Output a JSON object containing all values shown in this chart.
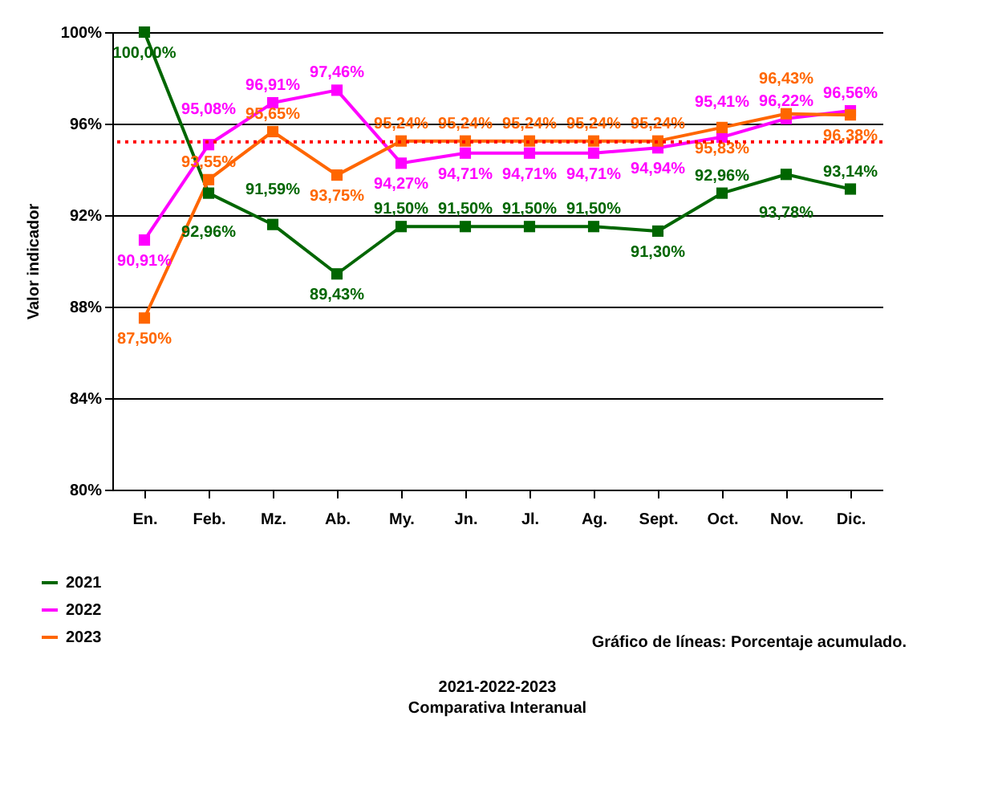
{
  "chart_data": {
    "type": "line",
    "title": "2021-2022-2023",
    "subtitle": "Comparativa Interanual",
    "ylabel": "Valor indicador",
    "annotations": [
      "Gráfico de líneas:  Porcentaje acumulado."
    ],
    "categories": [
      "En.",
      "Feb.",
      "Mz.",
      "Ab.",
      "My.",
      "Jn.",
      "Jl.",
      "Ag.",
      "Sept.",
      "Oct.",
      "Nov.",
      "Dic."
    ],
    "series": [
      {
        "name": "2021",
        "color": "#006600",
        "values": [
          100,
          92.96,
          91.59,
          89.43,
          91.5,
          91.5,
          91.5,
          91.5,
          91.3,
          92.96,
          93.78,
          93.14
        ],
        "value_labels": [
          "100,00%",
          "92,96%",
          "91,59%",
          "89,43%",
          "91,50%",
          "91,50%",
          "91,50%",
          "91,50%",
          "91,30%",
          "92,96%",
          "93,78%",
          "93,14%"
        ]
      },
      {
        "name": "2022",
        "color": "#ff00ff",
        "values": [
          90.91,
          95.08,
          96.91,
          97.46,
          94.27,
          94.71,
          94.71,
          94.71,
          94.94,
          95.41,
          96.22,
          96.56
        ],
        "value_labels": [
          "90,91%",
          "95,08%",
          "96,91%",
          "97,46%",
          "94,27%",
          "94,71%",
          "94,71%",
          "94,71%",
          "94,94%",
          "95,41%",
          "96,22%",
          "96,56%"
        ]
      },
      {
        "name": "2023",
        "color": "#ff6600",
        "values": [
          87.5,
          93.55,
          95.65,
          93.75,
          95.24,
          95.24,
          95.24,
          95.24,
          95.24,
          95.83,
          96.43,
          96.38
        ],
        "value_labels": [
          "87,50%",
          "93,55%",
          "95,65%",
          "93,75%",
          "95,24%",
          "95,24%",
          "95,24%",
          "95,24%",
          "95,24%",
          "95,83%",
          "96,43%",
          "96,38%"
        ]
      }
    ],
    "ylim": [
      80,
      100
    ],
    "yticks": [
      {
        "value": 80,
        "label": "80%"
      },
      {
        "value": 84,
        "label": "84%"
      },
      {
        "value": 88,
        "label": "88%"
      },
      {
        "value": 92,
        "label": "92%"
      },
      {
        "value": 96,
        "label": "96%"
      },
      {
        "value": 100,
        "label": "100%"
      }
    ],
    "ref_lines": [
      {
        "axis": "y",
        "value": 95.2,
        "color": "#ff0000",
        "line_style": "dotted"
      }
    ],
    "grid": "y",
    "legend": "bottom left",
    "marker": "square",
    "line_style": "solid"
  }
}
